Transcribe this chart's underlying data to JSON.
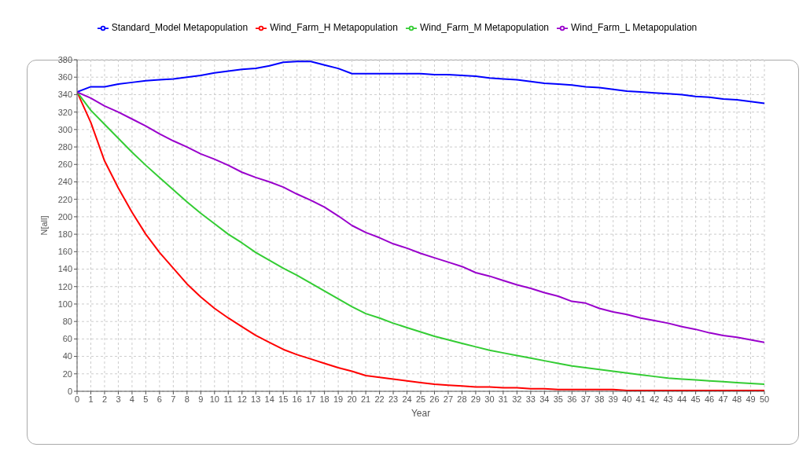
{
  "chart_data": {
    "type": "line",
    "xlabel": "Year",
    "ylabel": "N[all]",
    "x": [
      0,
      1,
      2,
      3,
      4,
      5,
      6,
      7,
      8,
      9,
      10,
      11,
      12,
      13,
      14,
      15,
      16,
      17,
      18,
      19,
      20,
      21,
      22,
      23,
      24,
      25,
      26,
      27,
      28,
      29,
      30,
      31,
      32,
      33,
      34,
      35,
      36,
      37,
      38,
      39,
      40,
      41,
      42,
      43,
      44,
      45,
      46,
      47,
      48,
      49,
      50
    ],
    "series": [
      {
        "name": "Standard_Model Metapopulation",
        "color": "#0000ff",
        "values": [
          343,
          349,
          349,
          352,
          354,
          356,
          357,
          358,
          360,
          362,
          365,
          367,
          369,
          370,
          373,
          377,
          378,
          378,
          374,
          370,
          364,
          364,
          364,
          364,
          364,
          364,
          363,
          363,
          362,
          361,
          359,
          358,
          357,
          355,
          353,
          352,
          351,
          349,
          348,
          346,
          344,
          343,
          342,
          341,
          340,
          338,
          337,
          335,
          334,
          332,
          330
        ]
      },
      {
        "name": "Wind_Farm_H Metapopulation",
        "color": "#ff0000",
        "values": [
          343,
          308,
          264,
          233,
          205,
          180,
          159,
          141,
          123,
          108,
          95,
          84,
          74,
          64,
          56,
          48,
          42,
          37,
          32,
          27,
          23,
          18,
          16,
          14,
          12,
          10,
          8,
          7,
          6,
          5,
          5,
          4,
          4,
          3,
          3,
          2,
          2,
          2,
          2,
          2,
          1,
          1,
          1,
          1,
          1,
          1,
          1,
          1,
          1,
          1,
          1
        ]
      },
      {
        "name": "Wind_Farm_M Metapopulation",
        "color": "#33cc33",
        "values": [
          343,
          322,
          306,
          290,
          274,
          259,
          245,
          231,
          217,
          204,
          192,
          180,
          170,
          159,
          150,
          141,
          133,
          124,
          115,
          106,
          97,
          89,
          84,
          78,
          73,
          68,
          63,
          59,
          55,
          51,
          47,
          44,
          41,
          38,
          35,
          32,
          29,
          27,
          25,
          23,
          21,
          19,
          17,
          15,
          14,
          13,
          12,
          11,
          10,
          9,
          8
        ]
      },
      {
        "name": "Wind_Farm_L Metapopulation",
        "color": "#9900cc",
        "values": [
          343,
          336,
          327,
          320,
          312,
          304,
          295,
          287,
          280,
          272,
          266,
          259,
          251,
          245,
          240,
          234,
          226,
          219,
          211,
          201,
          190,
          182,
          176,
          169,
          164,
          158,
          153,
          148,
          143,
          136,
          132,
          127,
          122,
          118,
          113,
          109,
          103,
          101,
          95,
          91,
          88,
          84,
          81,
          78,
          74,
          71,
          67,
          64,
          62,
          59,
          56
        ]
      }
    ],
    "xlim": [
      0,
      50
    ],
    "xticks": [
      0,
      1,
      2,
      3,
      4,
      5,
      6,
      7,
      8,
      9,
      10,
      11,
      12,
      13,
      14,
      15,
      16,
      17,
      18,
      19,
      20,
      21,
      22,
      23,
      24,
      25,
      26,
      27,
      28,
      29,
      30,
      31,
      32,
      33,
      34,
      35,
      36,
      37,
      38,
      39,
      40,
      41,
      42,
      43,
      44,
      45,
      46,
      47,
      48,
      49,
      50
    ],
    "ylim": [
      0,
      380
    ],
    "yticks": [
      0,
      20,
      40,
      60,
      80,
      100,
      120,
      140,
      160,
      180,
      200,
      220,
      240,
      260,
      280,
      300,
      320,
      340,
      360,
      380
    ],
    "grid": true,
    "legend": "top",
    "marker": "none",
    "line_style": "solid"
  }
}
